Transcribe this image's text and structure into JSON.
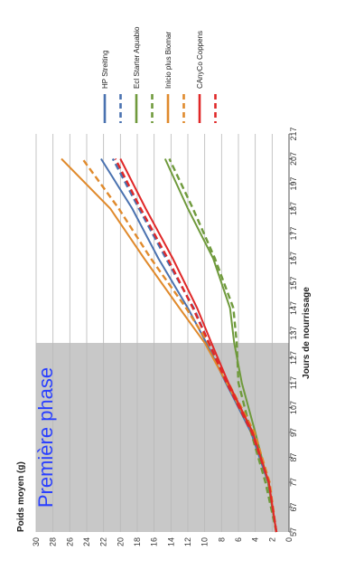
{
  "chart_data": {
    "type": "line",
    "title": "",
    "ylabel": "Poids moyen (g)",
    "xlabel": "Jours de nourrissage",
    "x_ticks": [
      57,
      67,
      77,
      87,
      97,
      107,
      117,
      127,
      137,
      147,
      157,
      167,
      177,
      187,
      197,
      207,
      217
    ],
    "y_ticks": [
      0,
      2,
      4,
      6,
      8,
      10,
      12,
      14,
      16,
      18,
      20,
      22,
      24,
      26,
      28,
      30
    ],
    "xlim": [
      57,
      217
    ],
    "ylim": [
      0,
      30
    ],
    "grid": true,
    "orientation": "rotated-90-clockwise",
    "legend_placement": "right",
    "shaded_region": {
      "x_start": 57,
      "x_end": 133,
      "label": "Première phase"
    },
    "series": [
      {
        "name": "HP Streiting",
        "color": "#4a72b0",
        "style": "solid",
        "points": [
          [
            57,
            1.5
          ],
          [
            77,
            2.5
          ],
          [
            97,
            4.5
          ],
          [
            117,
            7.5
          ],
          [
            133,
            9.8
          ],
          [
            147,
            12.0
          ],
          [
            167,
            15.5
          ],
          [
            187,
            18.6
          ],
          [
            207,
            22.3
          ]
        ]
      },
      {
        "name": "",
        "color": "#4a72b0",
        "style": "dashed",
        "points": [
          [
            57,
            1.5
          ],
          [
            77,
            2.4
          ],
          [
            97,
            4.4
          ],
          [
            117,
            7.3
          ],
          [
            133,
            9.5
          ],
          [
            147,
            11.3
          ],
          [
            167,
            14.6
          ],
          [
            187,
            17.8
          ],
          [
            207,
            20.9
          ]
        ]
      },
      {
        "name": "Ecl Starter Aquabio",
        "color": "#6f9a3c",
        "style": "solid",
        "points": [
          [
            57,
            1.5
          ],
          [
            77,
            2.5
          ],
          [
            97,
            4.0
          ],
          [
            117,
            5.6
          ],
          [
            133,
            6.5
          ],
          [
            147,
            7.0
          ],
          [
            167,
            9.0
          ],
          [
            187,
            12.0
          ],
          [
            207,
            14.7
          ]
        ]
      },
      {
        "name": "",
        "color": "#6f9a3c",
        "style": "dashed",
        "points": [
          [
            57,
            1.5
          ],
          [
            77,
            2.8
          ],
          [
            97,
            4.5
          ],
          [
            117,
            6.0
          ],
          [
            133,
            6.2
          ],
          [
            147,
            6.6
          ],
          [
            167,
            8.8
          ],
          [
            187,
            11.4
          ],
          [
            207,
            14.2
          ]
        ]
      },
      {
        "name": "Inicio plus Biomar",
        "color": "#e08a2c",
        "style": "solid",
        "points": [
          [
            57,
            1.5
          ],
          [
            77,
            2.4
          ],
          [
            97,
            4.3
          ],
          [
            117,
            7.4
          ],
          [
            133,
            10.0
          ],
          [
            147,
            13.0
          ],
          [
            167,
            17.2
          ],
          [
            187,
            21.2
          ],
          [
            207,
            27.0
          ]
        ]
      },
      {
        "name": "",
        "color": "#e08a2c",
        "style": "dashed",
        "points": [
          [
            57,
            1.5
          ],
          [
            77,
            2.3
          ],
          [
            97,
            4.1
          ],
          [
            117,
            7.2
          ],
          [
            133,
            9.6
          ],
          [
            147,
            12.2
          ],
          [
            167,
            16.4
          ],
          [
            187,
            20.2
          ],
          [
            207,
            24.5
          ]
        ]
      },
      {
        "name": "CAnyCo Coppens",
        "color": "#e02828",
        "style": "solid",
        "points": [
          [
            57,
            1.5
          ],
          [
            77,
            2.4
          ],
          [
            97,
            4.3
          ],
          [
            117,
            7.2
          ],
          [
            133,
            9.2
          ],
          [
            147,
            10.9
          ],
          [
            167,
            13.8
          ],
          [
            187,
            17.0
          ],
          [
            207,
            20.0
          ]
        ]
      },
      {
        "name": "",
        "color": "#e02828",
        "style": "dashed",
        "points": [
          [
            57,
            1.5
          ],
          [
            77,
            2.4
          ],
          [
            97,
            4.4
          ],
          [
            117,
            7.4
          ],
          [
            133,
            9.5
          ],
          [
            147,
            11.4
          ],
          [
            167,
            14.4
          ],
          [
            187,
            17.6
          ],
          [
            207,
            20.6
          ]
        ]
      }
    ]
  }
}
